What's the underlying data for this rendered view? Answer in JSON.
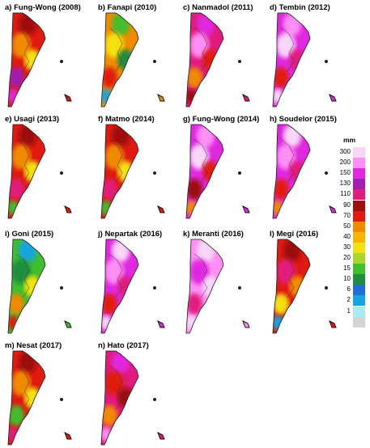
{
  "panels": [
    {
      "id": "a",
      "title": "a) Fung-Wong (2008)",
      "base": "#e01a10",
      "blobs": [
        "#9d1010",
        "#f08a00",
        "#f3e10f",
        "#a21fb0",
        "#e028e0"
      ]
    },
    {
      "id": "b",
      "title": "b) Fanapi (2010)",
      "base": "#f08a00",
      "blobs": [
        "#3fbe2e",
        "#f3e10f",
        "#1c8e3e",
        "#e01a10",
        "#16a4e0"
      ]
    },
    {
      "id": "c",
      "title": "c) Nanmadol (2011)",
      "base": "#e11a7d",
      "blobs": [
        "#e028e0",
        "#ff8ef5",
        "#e01a10",
        "#f08a00",
        "#9d1010"
      ]
    },
    {
      "id": "d",
      "title": "d) Tembin (2012)",
      "base": "#e028e0",
      "blobs": [
        "#ff8ef5",
        "#f7d6f7",
        "#e11a7d",
        "#e01a10",
        "#f7d6f7"
      ]
    },
    {
      "id": "e",
      "title": "e) Usagi (2013)",
      "base": "#e01a10",
      "blobs": [
        "#9d1010",
        "#f08a00",
        "#f3e10f",
        "#e11a7d",
        "#3fbe2e"
      ]
    },
    {
      "id": "f",
      "title": "f) Matmo (2014)",
      "base": "#e01a10",
      "blobs": [
        "#9d1010",
        "#f08a00",
        "#f3e10f",
        "#e11a7d",
        "#3fbe2e"
      ]
    },
    {
      "id": "g",
      "title": "g) Fung-Wong (2014)",
      "base": "#e028e0",
      "blobs": [
        "#ff8ef5",
        "#f7d6f7",
        "#e01a10",
        "#9d1010",
        "#f08a00"
      ]
    },
    {
      "id": "h",
      "title": "h) Soudelor (2015)",
      "base": "#e028e0",
      "blobs": [
        "#f7d6f7",
        "#ff8ef5",
        "#e11a7d",
        "#e01a10",
        "#f08a00"
      ]
    },
    {
      "id": "i",
      "title": "i) Goni (2015)",
      "base": "#3fbe2e",
      "blobs": [
        "#16a4e0",
        "#1c8e3e",
        "#f3e10f",
        "#f08a00",
        "#e01a10"
      ]
    },
    {
      "id": "j",
      "title": "j) Nepartak (2016)",
      "base": "#e028e0",
      "blobs": [
        "#f7d6f7",
        "#ff8ef5",
        "#e11a7d",
        "#e01a10",
        "#f7d6f7"
      ]
    },
    {
      "id": "k",
      "title": "k) Meranti (2016)",
      "base": "#ff8ef5",
      "blobs": [
        "#f7d6f7",
        "#e028e0",
        "#f7d6f7",
        "#e11a7d",
        "#f7d6f7"
      ]
    },
    {
      "id": "l",
      "title": "l) Megi (2016)",
      "base": "#e01a10",
      "blobs": [
        "#9d1010",
        "#e11a7d",
        "#f08a00",
        "#f3e10f",
        "#16a4e0"
      ]
    },
    {
      "id": "m",
      "title": "m) Nesat (2017)",
      "base": "#e01a10",
      "blobs": [
        "#9d1010",
        "#f08a00",
        "#f3e10f",
        "#3fbe2e",
        "#e11a7d"
      ]
    },
    {
      "id": "n",
      "title": "n) Hato (2017)",
      "base": "#e11a7d",
      "blobs": [
        "#e028e0",
        "#e01a10",
        "#9d1010",
        "#f08a00",
        "#ff8ef5"
      ]
    }
  ],
  "legend": {
    "unit": "mm",
    "items": [
      {
        "label": "300",
        "color": "#f7d6f7"
      },
      {
        "label": "200",
        "color": "#ff8ef5"
      },
      {
        "label": "150",
        "color": "#e028e0"
      },
      {
        "label": "130",
        "color": "#a21fb0"
      },
      {
        "label": "110",
        "color": "#e11a7d"
      },
      {
        "label": "90",
        "color": "#9d1010"
      },
      {
        "label": "70",
        "color": "#e01a10"
      },
      {
        "label": "50",
        "color": "#f08a00"
      },
      {
        "label": "40",
        "color": "#f7b500"
      },
      {
        "label": "30",
        "color": "#f3e10f"
      },
      {
        "label": "20",
        "color": "#a9d62c"
      },
      {
        "label": "15",
        "color": "#3fbe2e"
      },
      {
        "label": "10",
        "color": "#1c8e3e"
      },
      {
        "label": "6",
        "color": "#1f6fd6"
      },
      {
        "label": "2",
        "color": "#16a4e0"
      },
      {
        "label": "1",
        "color": "#a9ebf0"
      },
      {
        "label": "",
        "color": "#d4d4d4"
      }
    ]
  }
}
